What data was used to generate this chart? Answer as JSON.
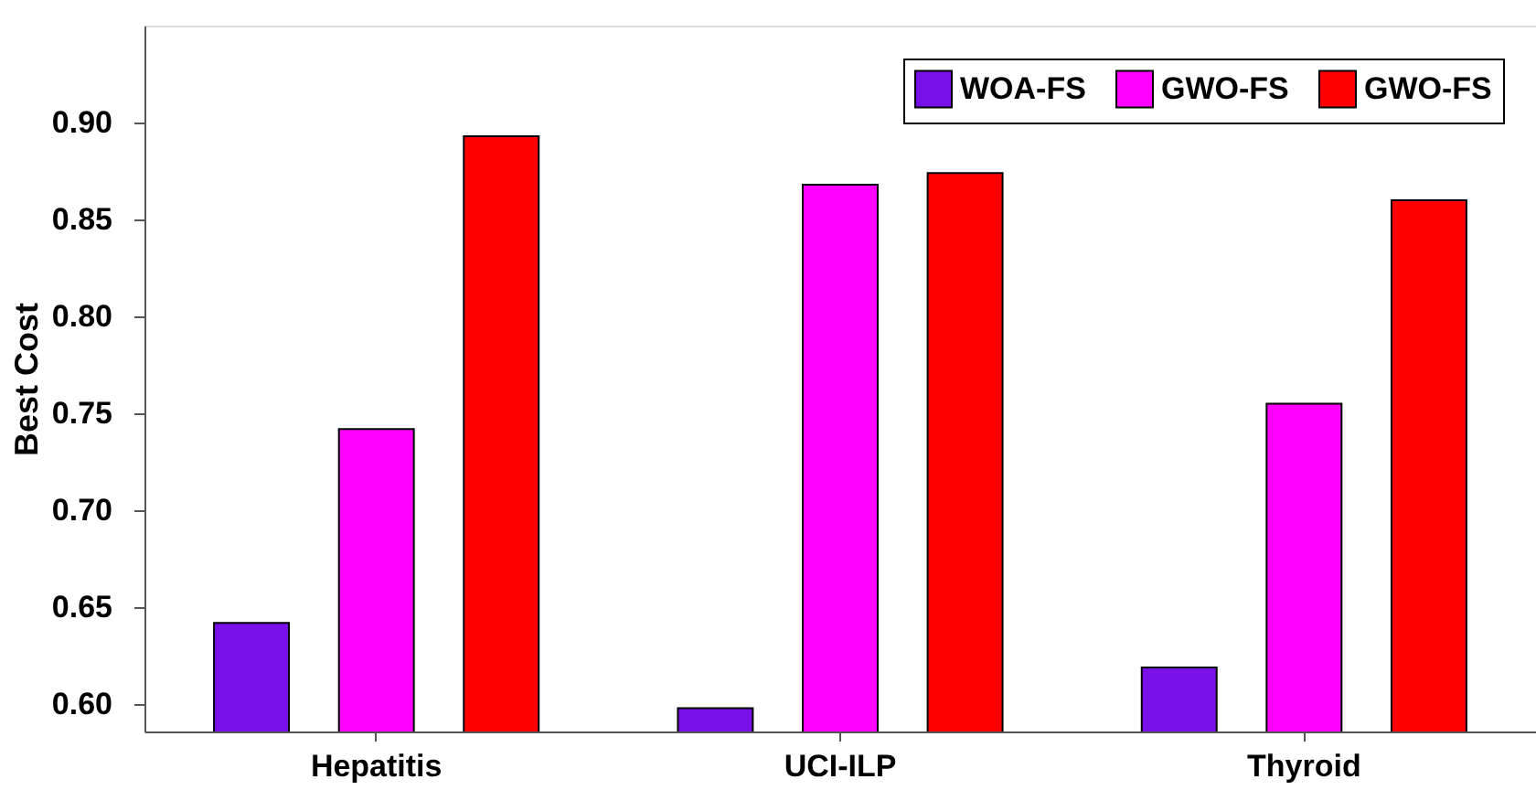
{
  "chart_data": {
    "type": "bar",
    "ylabel": "Best Cost",
    "categories": [
      "Hepatitis",
      "UCI-ILP",
      "Thyroid"
    ],
    "series": [
      {
        "name": "WOA-FS",
        "color": "#7a10e8",
        "values": [
          0.642,
          0.598,
          0.619
        ]
      },
      {
        "name": "GWO-FS",
        "color": "#ff00ff",
        "values": [
          0.742,
          0.868,
          0.755
        ]
      },
      {
        "name": "GWO-FS",
        "color": "#ff0000",
        "values": [
          0.893,
          0.874,
          0.86
        ]
      }
    ],
    "ylim": [
      0.586,
      0.95
    ],
    "yticks": [
      {
        "value": 0.6,
        "label": "0.60"
      },
      0.65,
      {
        "value": 0.7,
        "label": "0.70"
      },
      0.75,
      {
        "value": 0.8,
        "label": "0.80"
      },
      0.85,
      {
        "value": 0.9,
        "label": "0.90"
      }
    ],
    "grid": false,
    "legend": "top right"
  }
}
